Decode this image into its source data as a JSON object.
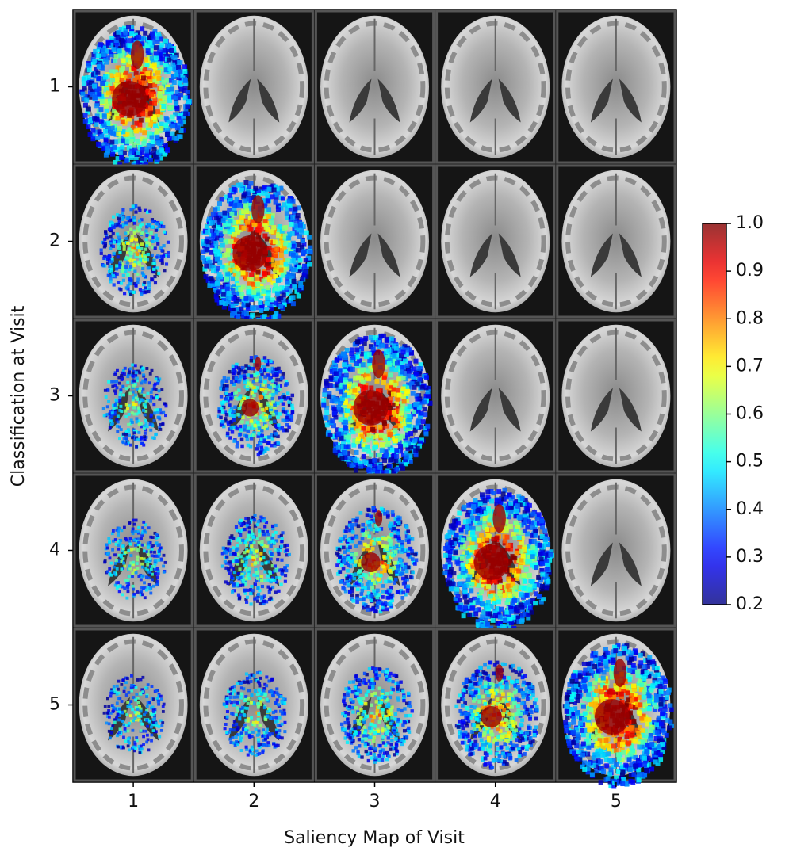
{
  "chart_data": {
    "type": "image_grid",
    "xlabel": "Saliency Map of Visit",
    "ylabel": "Classification at Visit",
    "xlim": [
      0.5,
      5.5
    ],
    "xticks": [
      1,
      2,
      3,
      4,
      5
    ],
    "ylim": [
      5.5,
      0.5
    ],
    "yticks": [
      1,
      2,
      3,
      4,
      5
    ],
    "colorbar": {
      "colormap": "jet",
      "lim": [
        0.2,
        1.0
      ],
      "ticks": [
        0.2,
        0.3,
        0.4,
        0.5,
        0.6,
        0.7,
        0.8,
        0.9,
        {
          "value": 1.0,
          "label": "1.0"
        }
      ]
    }
  }
}
